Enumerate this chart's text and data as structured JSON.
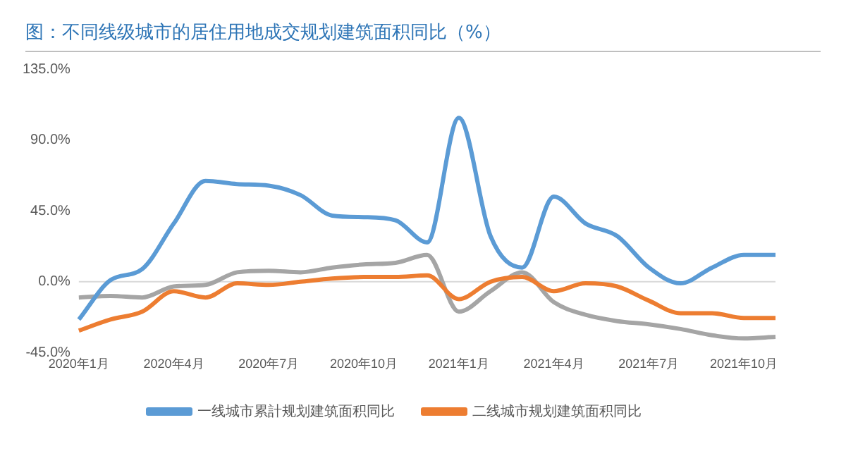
{
  "chart_data": {
    "type": "line",
    "title": "图：不同线级城市的居住用地成交规划建筑面积同比（%）",
    "categories": [
      "2020年1月",
      null,
      null,
      "2020年4月",
      null,
      null,
      "2020年7月",
      null,
      null,
      "2020年10月",
      null,
      null,
      "2021年1月",
      null,
      null,
      "2021年4月",
      null,
      null,
      "2021年7月",
      null,
      null,
      "2021年10月",
      null
    ],
    "series": [
      {
        "name": "一线城市累計规划建筑面积同比",
        "color": "#5b9bd5",
        "values": [
          -24,
          1,
          8,
          37,
          64,
          62,
          61,
          55,
          42,
          41,
          39,
          25,
          104,
          29,
          9,
          54,
          37,
          29,
          9,
          -1,
          9,
          17,
          17
        ]
      },
      {
        "name": "二线城市规划建筑面积同比",
        "color": "#ed7d31",
        "values": [
          -31,
          -24,
          -19,
          -6,
          -10,
          -1,
          -2,
          0,
          2,
          3,
          3,
          4,
          -11,
          0,
          3,
          -6,
          -1,
          -3,
          -12,
          -20,
          -20,
          -23,
          -23
        ]
      },
      {
        "color": "#a5a5a5",
        "values": [
          -10,
          -9,
          -10,
          -3,
          -2,
          6,
          7,
          6,
          9,
          11,
          12,
          17,
          -19,
          -6,
          6,
          -13,
          -21,
          -25,
          -27,
          -30,
          -34,
          -36,
          -35
        ]
      }
    ],
    "ylim": [
      -45,
      135
    ],
    "yticks": [
      {
        "value": -45,
        "label": "-45.0%"
      },
      {
        "value": 0,
        "label": "0.0%"
      },
      {
        "value": 45,
        "label": "45.0%"
      },
      {
        "value": 90,
        "label": "90.0%"
      },
      {
        "value": 135,
        "label": "135.0%"
      }
    ],
    "ref_lines": [
      {
        "axis": "y",
        "value": 0,
        "color": "#d9d9d9"
      }
    ],
    "grid": false,
    "legend": "bottom",
    "marker": "none",
    "line_style": "solid"
  }
}
